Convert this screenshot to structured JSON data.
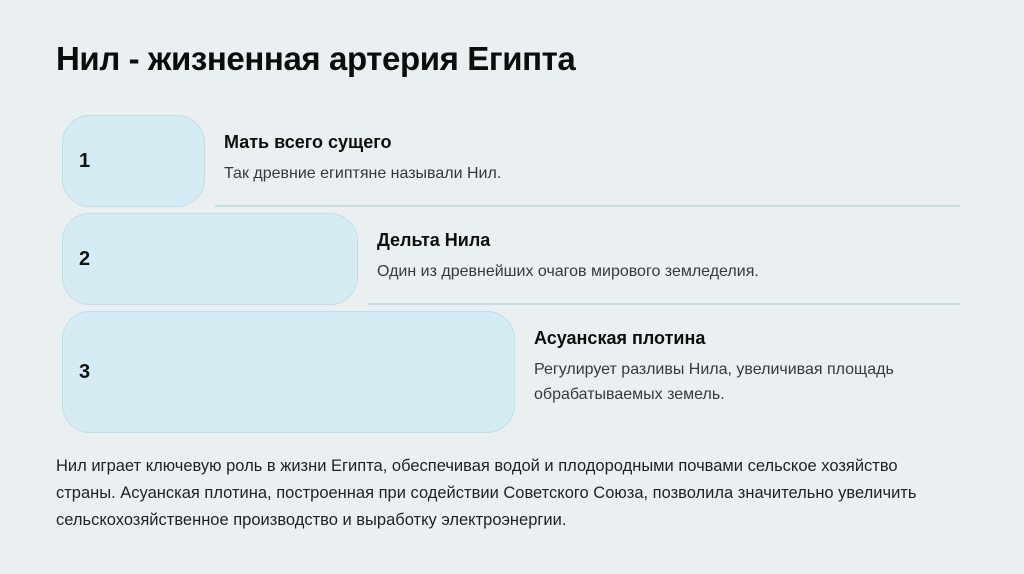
{
  "page": {
    "title": "Нил - жизненная артерия Египта"
  },
  "steps": [
    {
      "number": "1",
      "heading": "Мать всего сущего",
      "text": "Так древние египтяне называли Нил."
    },
    {
      "number": "2",
      "heading": "Дельта Нила",
      "text": "Один из древнейших очагов мирового земледелия."
    },
    {
      "number": "3",
      "heading": "Асуанская плотина",
      "text": "Регулирует разливы Нила, увеличивая площадь обрабатываемых земель."
    }
  ],
  "footer": {
    "paragraph": "Нил играет ключевую роль в жизни Египта, обеспечивая водой и плодородными почвами сельское хозяйство страны. Асуанская плотина, построенная при содействии Советского Союза, позволила значительно увеличить сельскохозяйственное производство и выработку электроэнергии."
  },
  "colors": {
    "background": "#eaf0f1",
    "card_fill": "#d6ecf4",
    "card_border": "#c0dde8",
    "divider": "#c6dce4",
    "heading_text": "#0d0e0e",
    "body_text": "#35393a"
  }
}
